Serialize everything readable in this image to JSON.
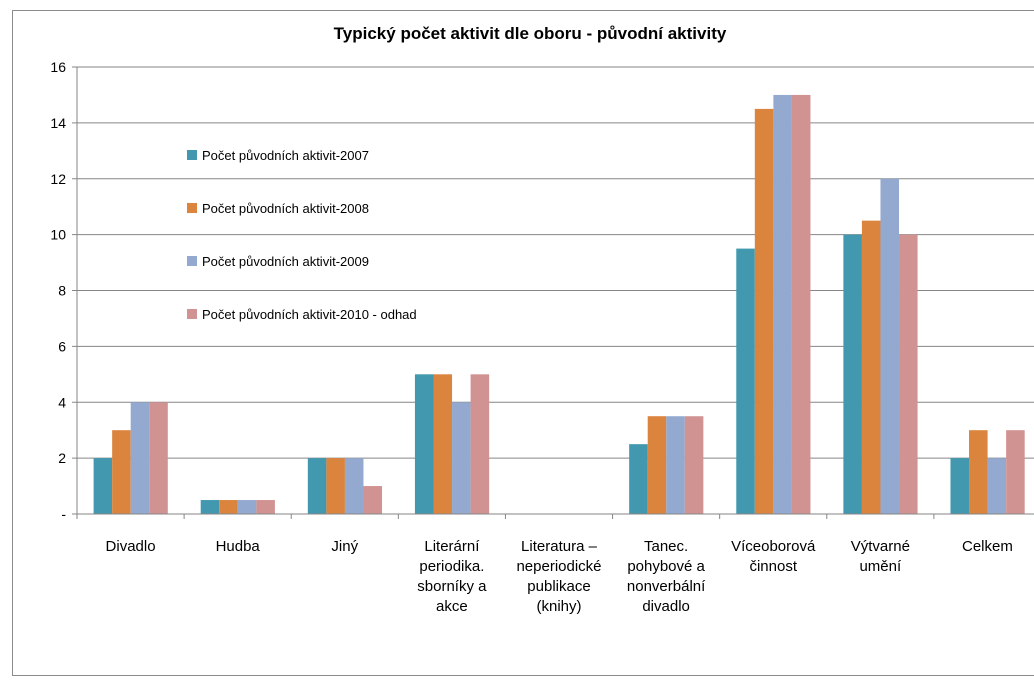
{
  "chart_data": {
    "type": "bar",
    "title": "Typický počet aktivit dle oboru - původní aktivity",
    "xlabel": "",
    "ylabel": "",
    "ylim": [
      0,
      16
    ],
    "y_ticks": [
      "-",
      "2",
      "4",
      "6",
      "8",
      "10",
      "12",
      "14",
      "16"
    ],
    "categories": [
      [
        "Divadlo"
      ],
      [
        "Hudba"
      ],
      [
        "Jiný"
      ],
      [
        "Literární",
        "periodika.",
        "sborníky a",
        "akce"
      ],
      [
        "Literatura –",
        "neperiodické",
        "publikace",
        "(knihy)"
      ],
      [
        "Tanec.",
        "pohybové a",
        "nonverbální",
        "divadlo"
      ],
      [
        "Víceoborová",
        "činnost"
      ],
      [
        "Výtvarné",
        "umění"
      ],
      [
        "Celkem"
      ]
    ],
    "series": [
      {
        "name": "Počet původních aktivit-2007",
        "color": "#4298AF",
        "values": [
          2,
          0.5,
          2,
          5,
          0,
          2.5,
          9.5,
          10,
          2
        ]
      },
      {
        "name": "Počet původních aktivit-2008",
        "color": "#DB843D",
        "values": [
          3,
          0.5,
          2,
          5,
          0,
          3.5,
          14.5,
          10.5,
          3
        ]
      },
      {
        "name": "Počet původních aktivit-2009",
        "color": "#93A9CF",
        "values": [
          4,
          0.5,
          2,
          4,
          0,
          3.5,
          15,
          12,
          2
        ]
      },
      {
        "name": "Počet původních aktivit-2010 - odhad",
        "color": "#D19392",
        "values": [
          4,
          0.5,
          1,
          5,
          0,
          3.5,
          15,
          10,
          3
        ]
      }
    ],
    "grid": true,
    "legend_position": "top-left"
  }
}
